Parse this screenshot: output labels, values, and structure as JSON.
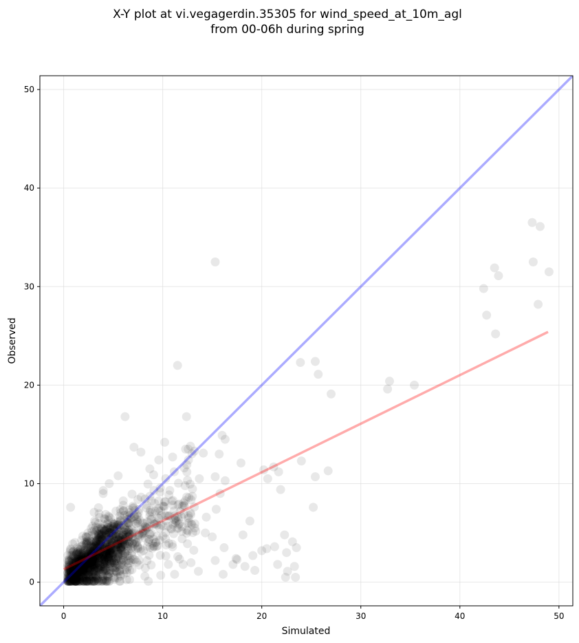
{
  "chart_data": {
    "type": "scatter",
    "title": "X-Y plot at vi.vegagerdin.35305 for wind_speed_at_10m_agl",
    "subtitle": "from 00-06h during spring",
    "xlabel": "Simulated",
    "ylabel": "Observed",
    "xlim": [
      -2.4,
      51.4
    ],
    "ylim": [
      -2.4,
      51.4
    ],
    "xticks": [
      0,
      10,
      20,
      30,
      40,
      50
    ],
    "yticks": [
      0,
      10,
      20,
      30,
      40,
      50
    ],
    "grid": true,
    "colors": {
      "points": "#000000",
      "identity_line": "#0000ff",
      "fit_line": "#ff0000",
      "grid": "#dddddd"
    },
    "identity_line": {
      "x": [
        -2.4,
        51.4
      ],
      "y": [
        -2.4,
        51.4
      ]
    },
    "fit_line": {
      "x": [
        0,
        48.9
      ],
      "y": [
        1.3,
        25.4
      ]
    },
    "cluster": {
      "count": 1500,
      "x_mode": 2.6,
      "note_region": "0-15 simulated, 0-14 observed"
    },
    "points": [
      [
        15.3,
        32.5
      ],
      [
        11.5,
        22.0
      ],
      [
        6.2,
        16.8
      ],
      [
        12.4,
        16.8
      ],
      [
        23.9,
        22.3
      ],
      [
        25.4,
        22.4
      ],
      [
        25.7,
        21.1
      ],
      [
        27.0,
        19.1
      ],
      [
        32.7,
        19.6
      ],
      [
        32.9,
        20.4
      ],
      [
        35.4,
        20.0
      ],
      [
        47.3,
        36.5
      ],
      [
        48.1,
        36.1
      ],
      [
        43.5,
        31.9
      ],
      [
        47.4,
        32.5
      ],
      [
        43.9,
        31.1
      ],
      [
        49.0,
        31.5
      ],
      [
        42.4,
        29.8
      ],
      [
        42.7,
        27.1
      ],
      [
        47.9,
        28.2
      ],
      [
        43.6,
        25.2
      ],
      [
        10.2,
        14.2
      ],
      [
        16.0,
        14.9
      ],
      [
        16.3,
        14.5
      ],
      [
        13.2,
        13.3
      ],
      [
        15.7,
        13.0
      ],
      [
        17.9,
        12.1
      ],
      [
        21.2,
        11.7
      ],
      [
        21.7,
        11.2
      ],
      [
        20.2,
        11.4
      ],
      [
        20.6,
        10.5
      ],
      [
        24.0,
        12.3
      ],
      [
        25.4,
        10.7
      ],
      [
        26.7,
        11.3
      ],
      [
        21.9,
        9.4
      ],
      [
        25.2,
        7.6
      ],
      [
        18.8,
        6.2
      ],
      [
        18.1,
        4.8
      ],
      [
        22.3,
        4.8
      ],
      [
        23.1,
        4.1
      ],
      [
        23.5,
        3.5
      ],
      [
        20.0,
        3.2
      ],
      [
        20.5,
        3.4
      ],
      [
        21.3,
        3.6
      ],
      [
        22.5,
        3.0
      ],
      [
        21.6,
        1.8
      ],
      [
        23.3,
        1.6
      ],
      [
        22.6,
        1.1
      ],
      [
        22.4,
        0.5
      ],
      [
        23.4,
        0.5
      ],
      [
        19.1,
        2.7
      ],
      [
        18.3,
        1.6
      ],
      [
        17.1,
        1.8
      ],
      [
        17.5,
        2.3
      ],
      [
        16.1,
        0.8
      ],
      [
        0.7,
        7.6
      ],
      [
        4.0,
        9.3
      ],
      [
        4.6,
        10.0
      ],
      [
        5.5,
        10.8
      ],
      [
        7.1,
        13.7
      ],
      [
        7.8,
        13.2
      ],
      [
        8.7,
        11.5
      ],
      [
        9.6,
        12.4
      ],
      [
        11.0,
        12.7
      ],
      [
        12.6,
        12.4
      ],
      [
        14.1,
        13.1
      ],
      [
        12.8,
        13.8
      ],
      [
        15.3,
        10.7
      ],
      [
        16.3,
        10.3
      ],
      [
        15.8,
        9.0
      ],
      [
        15.4,
        7.4
      ],
      [
        13.7,
        10.5
      ],
      [
        14.4,
        6.6
      ],
      [
        15.0,
        4.6
      ],
      [
        14.3,
        5.0
      ],
      [
        16.2,
        3.5
      ],
      [
        15.3,
        2.2
      ],
      [
        17.4,
        2.4
      ],
      [
        19.3,
        1.2
      ],
      [
        13.6,
        1.1
      ],
      [
        11.2,
        0.8
      ],
      [
        9.8,
        0.7
      ],
      [
        8.2,
        0.6
      ],
      [
        12.5,
        3.9
      ]
    ]
  }
}
